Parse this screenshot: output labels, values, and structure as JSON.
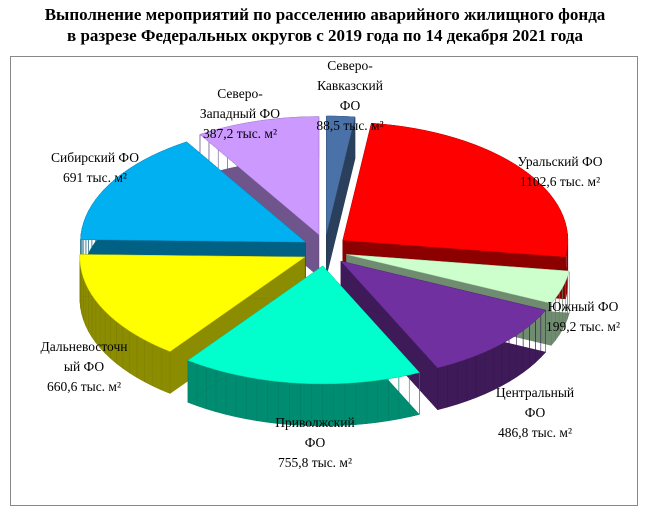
{
  "chart_data": {
    "type": "pie",
    "title": "Выполнение мероприятий по расселению аварийного жилищного фонда\nв разрезе Федеральных округов с 2019 года по 14 декабря 2021 года",
    "categories": [
      "Северо-\nКавказский\nФО",
      "Уральский ФО",
      "Южный ФО",
      "Центральный\nФО",
      "Приволжский\nФО",
      "Дальневосточн\nый ФО",
      "Сибирский ФО",
      "Северо-\nЗападный ФО"
    ],
    "values": [
      88.5,
      1102.6,
      199.2,
      486.8,
      755.8,
      660.6,
      691,
      387.2
    ],
    "value_labels": [
      "88,5 тыс. м²",
      "1102,6 тыс. м²",
      "199,2 тыс. м²",
      "486,8 тыс. м²",
      "755,8 тыс. м²",
      "660,6 тыс. м²",
      "691 тыс. м²",
      "387,2 тыс. м²"
    ],
    "colors": [
      "#4a72a8",
      "#ff0000",
      "#ccffcc",
      "#7030a0",
      "#00ffcc",
      "#ffff00",
      "#00b0f0",
      "#cc99ff"
    ]
  }
}
